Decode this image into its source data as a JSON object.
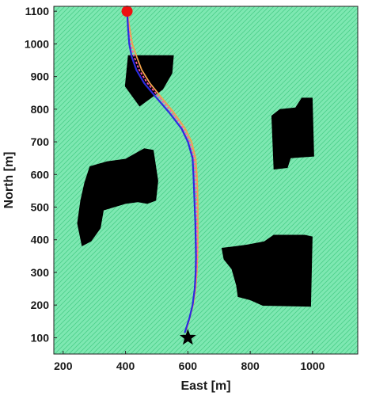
{
  "chart_data": {
    "type": "line",
    "xlabel": "East [m]",
    "ylabel": "North [m]",
    "xlim": [
      170,
      1145
    ],
    "ylim": [
      50,
      1115
    ],
    "x_ticks": [
      "200",
      "400",
      "600",
      "800",
      "1000"
    ],
    "y_ticks": [
      "100",
      "200",
      "300",
      "400",
      "500",
      "600",
      "700",
      "800",
      "900",
      "1000",
      "1100"
    ],
    "grid": false,
    "background": "green vector field (current flow) with black obstacle regions",
    "colors": {
      "field": "#5fdc9a",
      "obstacle": "#000000",
      "path_primary": "#2b2be0",
      "path_secondary": "#ff5aa8",
      "path_tertiary": "#f2a24a",
      "start_marker": "#ee1111",
      "goal_marker": "#000000"
    },
    "start": {
      "x": 405,
      "y": 1100,
      "marker": "red circle"
    },
    "goal": {
      "x": 600,
      "y": 100,
      "marker": "black star"
    },
    "obstacles": [
      {
        "name": "top triangle",
        "points": [
          [
            408,
            965
          ],
          [
            555,
            965
          ],
          [
            550,
            910
          ],
          [
            520,
            860
          ],
          [
            445,
            808
          ],
          [
            398,
            870
          ]
        ]
      },
      {
        "name": "right block",
        "points": [
          [
            1000,
            835
          ],
          [
            1005,
            655
          ],
          [
            930,
            650
          ],
          [
            920,
            620
          ],
          [
            875,
            615
          ],
          [
            868,
            780
          ],
          [
            895,
            800
          ],
          [
            945,
            805
          ],
          [
            965,
            835
          ]
        ]
      },
      {
        "name": "left polygon",
        "points": [
          [
            260,
            380
          ],
          [
            245,
            450
          ],
          [
            255,
            520
          ],
          [
            268,
            575
          ],
          [
            285,
            625
          ],
          [
            340,
            640
          ],
          [
            400,
            648
          ],
          [
            460,
            680
          ],
          [
            490,
            675
          ],
          [
            505,
            580
          ],
          [
            498,
            520
          ],
          [
            470,
            510
          ],
          [
            440,
            515
          ],
          [
            400,
            510
          ],
          [
            330,
            490
          ],
          [
            320,
            435
          ],
          [
            290,
            395
          ]
        ]
      },
      {
        "name": "bottom-right polygon",
        "points": [
          [
            708,
            375
          ],
          [
            715,
            340
          ],
          [
            740,
            310
          ],
          [
            755,
            260
          ],
          [
            760,
            225
          ],
          [
            800,
            215
          ],
          [
            840,
            198
          ],
          [
            995,
            195
          ],
          [
            1000,
            410
          ],
          [
            975,
            415
          ],
          [
            875,
            415
          ],
          [
            845,
            395
          ],
          [
            790,
            385
          ],
          [
            750,
            380
          ]
        ]
      }
    ],
    "series": [
      {
        "color": "#2b2be0",
        "x": [
          405,
          408,
          412,
          420,
          435,
          460,
          495,
          540,
          580,
          600,
          615,
          618,
          620,
          622,
          624,
          625,
          626,
          625,
          622,
          615,
          605,
          595,
          590
        ],
        "y": [
          1100,
          1050,
          1000,
          960,
          920,
          880,
          840,
          790,
          740,
          700,
          650,
          600,
          550,
          500,
          450,
          400,
          350,
          300,
          250,
          200,
          160,
          130,
          115
        ]
      },
      {
        "color": "#ff5aa8",
        "x": [
          405,
          410,
          416,
          428,
          444,
          470,
          505,
          548,
          586,
          606,
          620,
          624,
          626,
          628,
          629,
          630,
          630,
          628,
          624,
          616,
          605,
          596,
          590
        ],
        "y": [
          1100,
          1050,
          1000,
          960,
          920,
          880,
          840,
          790,
          740,
          700,
          650,
          600,
          550,
          500,
          450,
          400,
          350,
          300,
          250,
          200,
          160,
          130,
          115
        ]
      },
      {
        "color": "#f2a24a",
        "x": [
          405,
          413,
          422,
          436,
          452,
          478,
          512,
          555,
          592,
          612,
          625,
          629,
          631,
          632,
          632,
          632,
          631,
          629,
          625,
          617,
          606,
          597,
          590
        ],
        "y": [
          1100,
          1050,
          1000,
          960,
          920,
          880,
          840,
          790,
          740,
          700,
          650,
          600,
          550,
          500,
          450,
          400,
          350,
          300,
          250,
          200,
          160,
          130,
          115
        ]
      }
    ]
  }
}
